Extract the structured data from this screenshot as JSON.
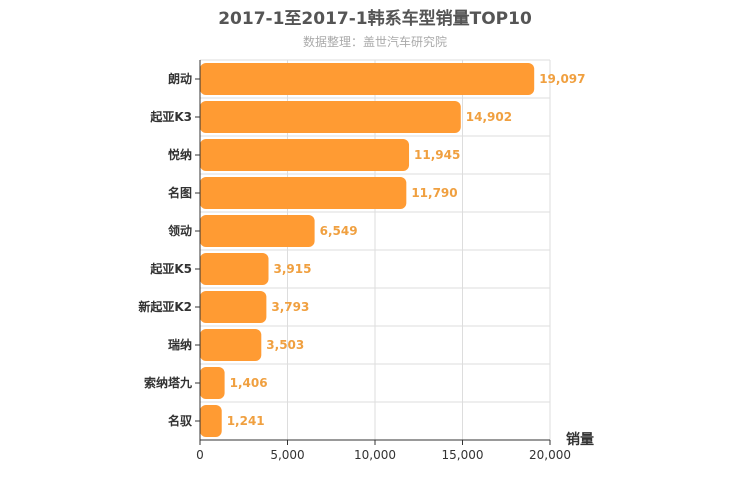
{
  "chart_data": {
    "type": "bar",
    "orientation": "horizontal",
    "title": "2017-1至2017-1韩系车型销量TOP10",
    "subtitle": "数据整理：盖世汽车研究院",
    "categories": [
      "朗动",
      "起亚K3",
      "悦纳",
      "名图",
      "领动",
      "起亚K5",
      "新起亚K2",
      "瑞纳",
      "索纳塔九",
      "名驭"
    ],
    "values": [
      19097,
      14902,
      11945,
      11790,
      6549,
      3915,
      3793,
      3503,
      1406,
      1241
    ],
    "value_labels": [
      "19,097",
      "14,902",
      "11,945",
      "11,790",
      "6,549",
      "3,915",
      "3,793",
      "3,503",
      "1,406",
      "1,241"
    ],
    "xlabel": "销量",
    "xlim": [
      0,
      20000
    ],
    "x_ticks": [
      0,
      5000,
      10000,
      15000,
      20000
    ],
    "x_tick_labels": [
      "0",
      "5,000",
      "10,000",
      "15,000",
      "20,000"
    ],
    "grid": true,
    "bar_color": "#ff9b33",
    "label_color": "#f0a040"
  }
}
